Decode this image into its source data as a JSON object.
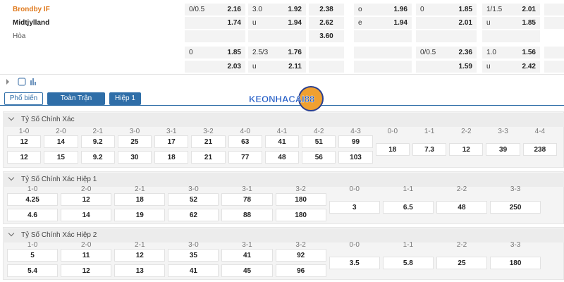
{
  "teams": [
    "Brondby IF",
    "Midtjylland",
    "Hòa"
  ],
  "odds_rows": [
    [
      {
        "label": "0/0.5",
        "odds": "2.16"
      },
      {
        "label": "3.0",
        "odds": "1.92"
      },
      {
        "odds": "2.38"
      },
      {
        "label": "o",
        "odds": "1.96"
      },
      {
        "label": "0",
        "odds": "1.85"
      },
      {
        "label": "1/1.5",
        "odds": "2.01"
      }
    ],
    [
      {
        "odds": "1.74"
      },
      {
        "label": "u",
        "odds": "1.94"
      },
      {
        "odds": "2.62"
      },
      {
        "label": "e",
        "odds": "1.94"
      },
      {
        "odds": "2.01"
      },
      {
        "label": "u",
        "odds": "1.85"
      }
    ],
    [
      null,
      null,
      {
        "odds": "3.60"
      },
      null,
      null,
      null
    ],
    [
      {
        "label": "0",
        "odds": "1.85"
      },
      {
        "label": "2.5/3",
        "odds": "1.76"
      },
      null,
      null,
      {
        "label": "0/0.5",
        "odds": "2.36"
      },
      {
        "label": "1.0",
        "odds": "1.56"
      }
    ],
    [
      {
        "odds": "2.03"
      },
      {
        "label": "u",
        "odds": "2.11"
      },
      null,
      null,
      {
        "odds": "1.59"
      },
      {
        "label": "u",
        "odds": "2.42"
      }
    ]
  ],
  "tabs": [
    "Phổ biến",
    "Toàn Trận",
    "Hiệp 1"
  ],
  "logo": "KEONHACAI88",
  "sections": [
    {
      "title": "Tỷ Số Chính Xác",
      "scores": [
        "1-0",
        "2-0",
        "2-1",
        "3-0",
        "3-1",
        "3-2",
        "4-0",
        "4-1",
        "4-2",
        "4-3"
      ],
      "draw_scores": [
        "0-0",
        "1-1",
        "2-2",
        "3-3",
        "4-4"
      ],
      "rows": [
        [
          "12",
          "14",
          "9.2",
          "25",
          "17",
          "21",
          "63",
          "41",
          "51",
          "99"
        ],
        [
          "12",
          "15",
          "9.2",
          "30",
          "18",
          "21",
          "77",
          "48",
          "56",
          "103"
        ]
      ],
      "draws": [
        "18",
        "7.3",
        "12",
        "39",
        "238"
      ]
    },
    {
      "title": "Tỷ Số Chính Xác Hiệp 1",
      "scores": [
        "1-0",
        "2-0",
        "2-1",
        "3-0",
        "3-1",
        "3-2"
      ],
      "draw_scores": [
        "0-0",
        "1-1",
        "2-2",
        "3-3"
      ],
      "rows": [
        [
          "4.25",
          "12",
          "18",
          "52",
          "78",
          "180"
        ],
        [
          "4.6",
          "14",
          "19",
          "62",
          "88",
          "180"
        ]
      ],
      "draws": [
        "3",
        "6.5",
        "48",
        "250"
      ]
    },
    {
      "title": "Tỷ Số Chính Xác Hiệp 2",
      "scores": [
        "1-0",
        "2-0",
        "2-1",
        "3-0",
        "3-1",
        "3-2"
      ],
      "draw_scores": [
        "0-0",
        "1-1",
        "2-2",
        "3-3"
      ],
      "rows": [
        [
          "5",
          "11",
          "12",
          "35",
          "41",
          "92"
        ],
        [
          "5.4",
          "12",
          "13",
          "41",
          "45",
          "96"
        ]
      ],
      "draws": [
        "3.5",
        "5.8",
        "25",
        "180"
      ]
    }
  ]
}
